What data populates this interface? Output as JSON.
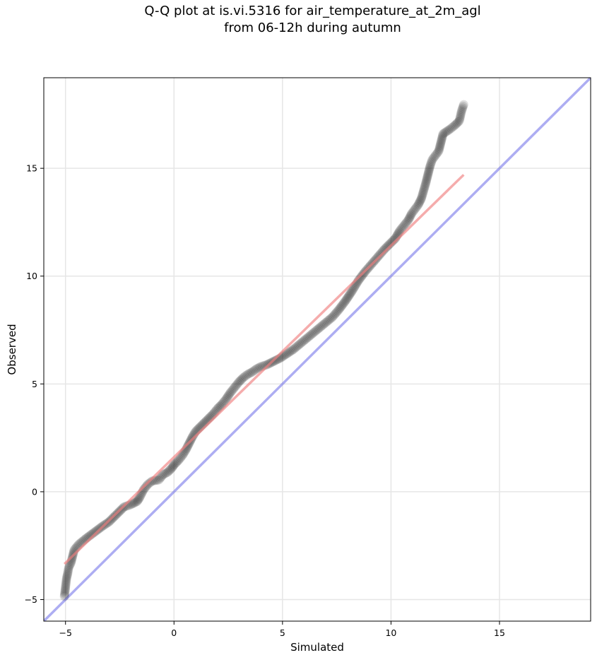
{
  "chart_data": {
    "type": "scatter",
    "title_line1": "Q-Q plot at is.vi.5316 for air_temperature_at_2m_agl",
    "title_line2": "from 06-12h during autumn",
    "xlabel": "Simulated",
    "ylabel": "Observed",
    "xlim": [
      -6.0,
      19.2
    ],
    "ylim": [
      -6.0,
      19.2
    ],
    "xticks": [
      -5,
      0,
      5,
      10,
      15
    ],
    "yticks": [
      -5,
      0,
      5,
      10,
      15
    ],
    "grid": true,
    "colors": {
      "points": "#000000",
      "fit_line": "#f08080",
      "identity_line": "#6a6ae8",
      "grid": "#e6e6e6"
    },
    "series": [
      {
        "values": [
          [
            -5.05,
            -4.85
          ],
          [
            -4.95,
            -4.0
          ],
          [
            -4.9,
            -3.8
          ],
          [
            -4.85,
            -3.5
          ],
          [
            -4.75,
            -3.3
          ],
          [
            -4.6,
            -2.7
          ],
          [
            -4.4,
            -2.45
          ],
          [
            -4.1,
            -2.2
          ],
          [
            -3.7,
            -1.9
          ],
          [
            -3.3,
            -1.6
          ],
          [
            -3.0,
            -1.4
          ],
          [
            -2.7,
            -1.1
          ],
          [
            -2.3,
            -0.7
          ],
          [
            -2.0,
            -0.6
          ],
          [
            -1.7,
            -0.45
          ],
          [
            -1.6,
            -0.3
          ],
          [
            -1.4,
            0.1
          ],
          [
            -1.2,
            0.35
          ],
          [
            -1.0,
            0.5
          ],
          [
            -0.7,
            0.55
          ],
          [
            -0.5,
            0.8
          ],
          [
            -0.3,
            0.9
          ],
          [
            -0.1,
            1.1
          ],
          [
            0.0,
            1.25
          ],
          [
            0.2,
            1.45
          ],
          [
            0.4,
            1.7
          ],
          [
            0.55,
            1.95
          ],
          [
            0.7,
            2.25
          ],
          [
            0.85,
            2.55
          ],
          [
            1.0,
            2.8
          ],
          [
            1.2,
            3.0
          ],
          [
            1.4,
            3.2
          ],
          [
            1.6,
            3.4
          ],
          [
            1.8,
            3.6
          ],
          [
            2.0,
            3.85
          ],
          [
            2.2,
            4.05
          ],
          [
            2.4,
            4.3
          ],
          [
            2.6,
            4.6
          ],
          [
            2.8,
            4.85
          ],
          [
            3.0,
            5.1
          ],
          [
            3.2,
            5.3
          ],
          [
            3.4,
            5.45
          ],
          [
            3.6,
            5.55
          ],
          [
            3.8,
            5.7
          ],
          [
            4.0,
            5.8
          ],
          [
            4.3,
            5.9
          ],
          [
            4.6,
            6.05
          ],
          [
            4.9,
            6.2
          ],
          [
            5.2,
            6.4
          ],
          [
            5.5,
            6.6
          ],
          [
            5.8,
            6.85
          ],
          [
            6.1,
            7.1
          ],
          [
            6.4,
            7.35
          ],
          [
            6.7,
            7.6
          ],
          [
            7.0,
            7.85
          ],
          [
            7.3,
            8.1
          ],
          [
            7.6,
            8.45
          ],
          [
            7.9,
            8.85
          ],
          [
            8.2,
            9.3
          ],
          [
            8.5,
            9.8
          ],
          [
            8.8,
            10.2
          ],
          [
            9.1,
            10.55
          ],
          [
            9.4,
            10.9
          ],
          [
            9.7,
            11.25
          ],
          [
            10.0,
            11.55
          ],
          [
            10.2,
            11.75
          ],
          [
            10.4,
            12.1
          ],
          [
            10.6,
            12.35
          ],
          [
            10.8,
            12.6
          ],
          [
            10.95,
            12.9
          ],
          [
            11.1,
            13.1
          ],
          [
            11.25,
            13.3
          ],
          [
            11.4,
            13.6
          ],
          [
            11.5,
            13.95
          ],
          [
            11.6,
            14.3
          ],
          [
            11.7,
            14.7
          ],
          [
            11.8,
            15.1
          ],
          [
            11.9,
            15.4
          ],
          [
            12.05,
            15.6
          ],
          [
            12.2,
            15.8
          ],
          [
            12.3,
            16.2
          ],
          [
            12.4,
            16.6
          ],
          [
            12.7,
            16.8
          ],
          [
            12.95,
            17.0
          ],
          [
            13.15,
            17.2
          ],
          [
            13.25,
            17.65
          ],
          [
            13.35,
            17.95
          ]
        ]
      }
    ],
    "fit_line": {
      "x": [
        -5.05,
        13.35
      ],
      "y": [
        -3.35,
        14.7
      ]
    },
    "identity_line": {
      "x": [
        -6.0,
        19.2
      ],
      "y": [
        -6.0,
        19.2
      ]
    }
  }
}
